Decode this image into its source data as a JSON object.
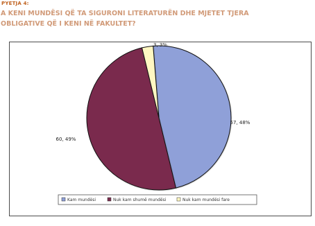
{
  "header": {
    "kicker": "PYETJA 4:",
    "title": "A KENI MUNDËSI QË TA SIGURONI LITERATURËN DHE MJETET TJERA OBLIGATIVE QË I KENI NË FAKULTET?"
  },
  "chart_data": {
    "type": "pie",
    "title": "",
    "slices": [
      {
        "name": "Kam mundësi",
        "value": 57,
        "percent_label": "57, 48%",
        "color": "#8fa0d8"
      },
      {
        "name": "Nuk kam shumë mundësi",
        "value": 60,
        "percent_label": "60, 49%",
        "color": "#7a2c4e"
      },
      {
        "name": "Nuk kam mundësi fare",
        "value": 3,
        "percent_label": "3, 3%",
        "color": "#fff7c2"
      }
    ],
    "legend": {
      "placement": "bottom",
      "entries": [
        "Kam mundësi",
        "Nuk kam shumë mundësi",
        "Nuk kam mundësi fare"
      ]
    }
  }
}
